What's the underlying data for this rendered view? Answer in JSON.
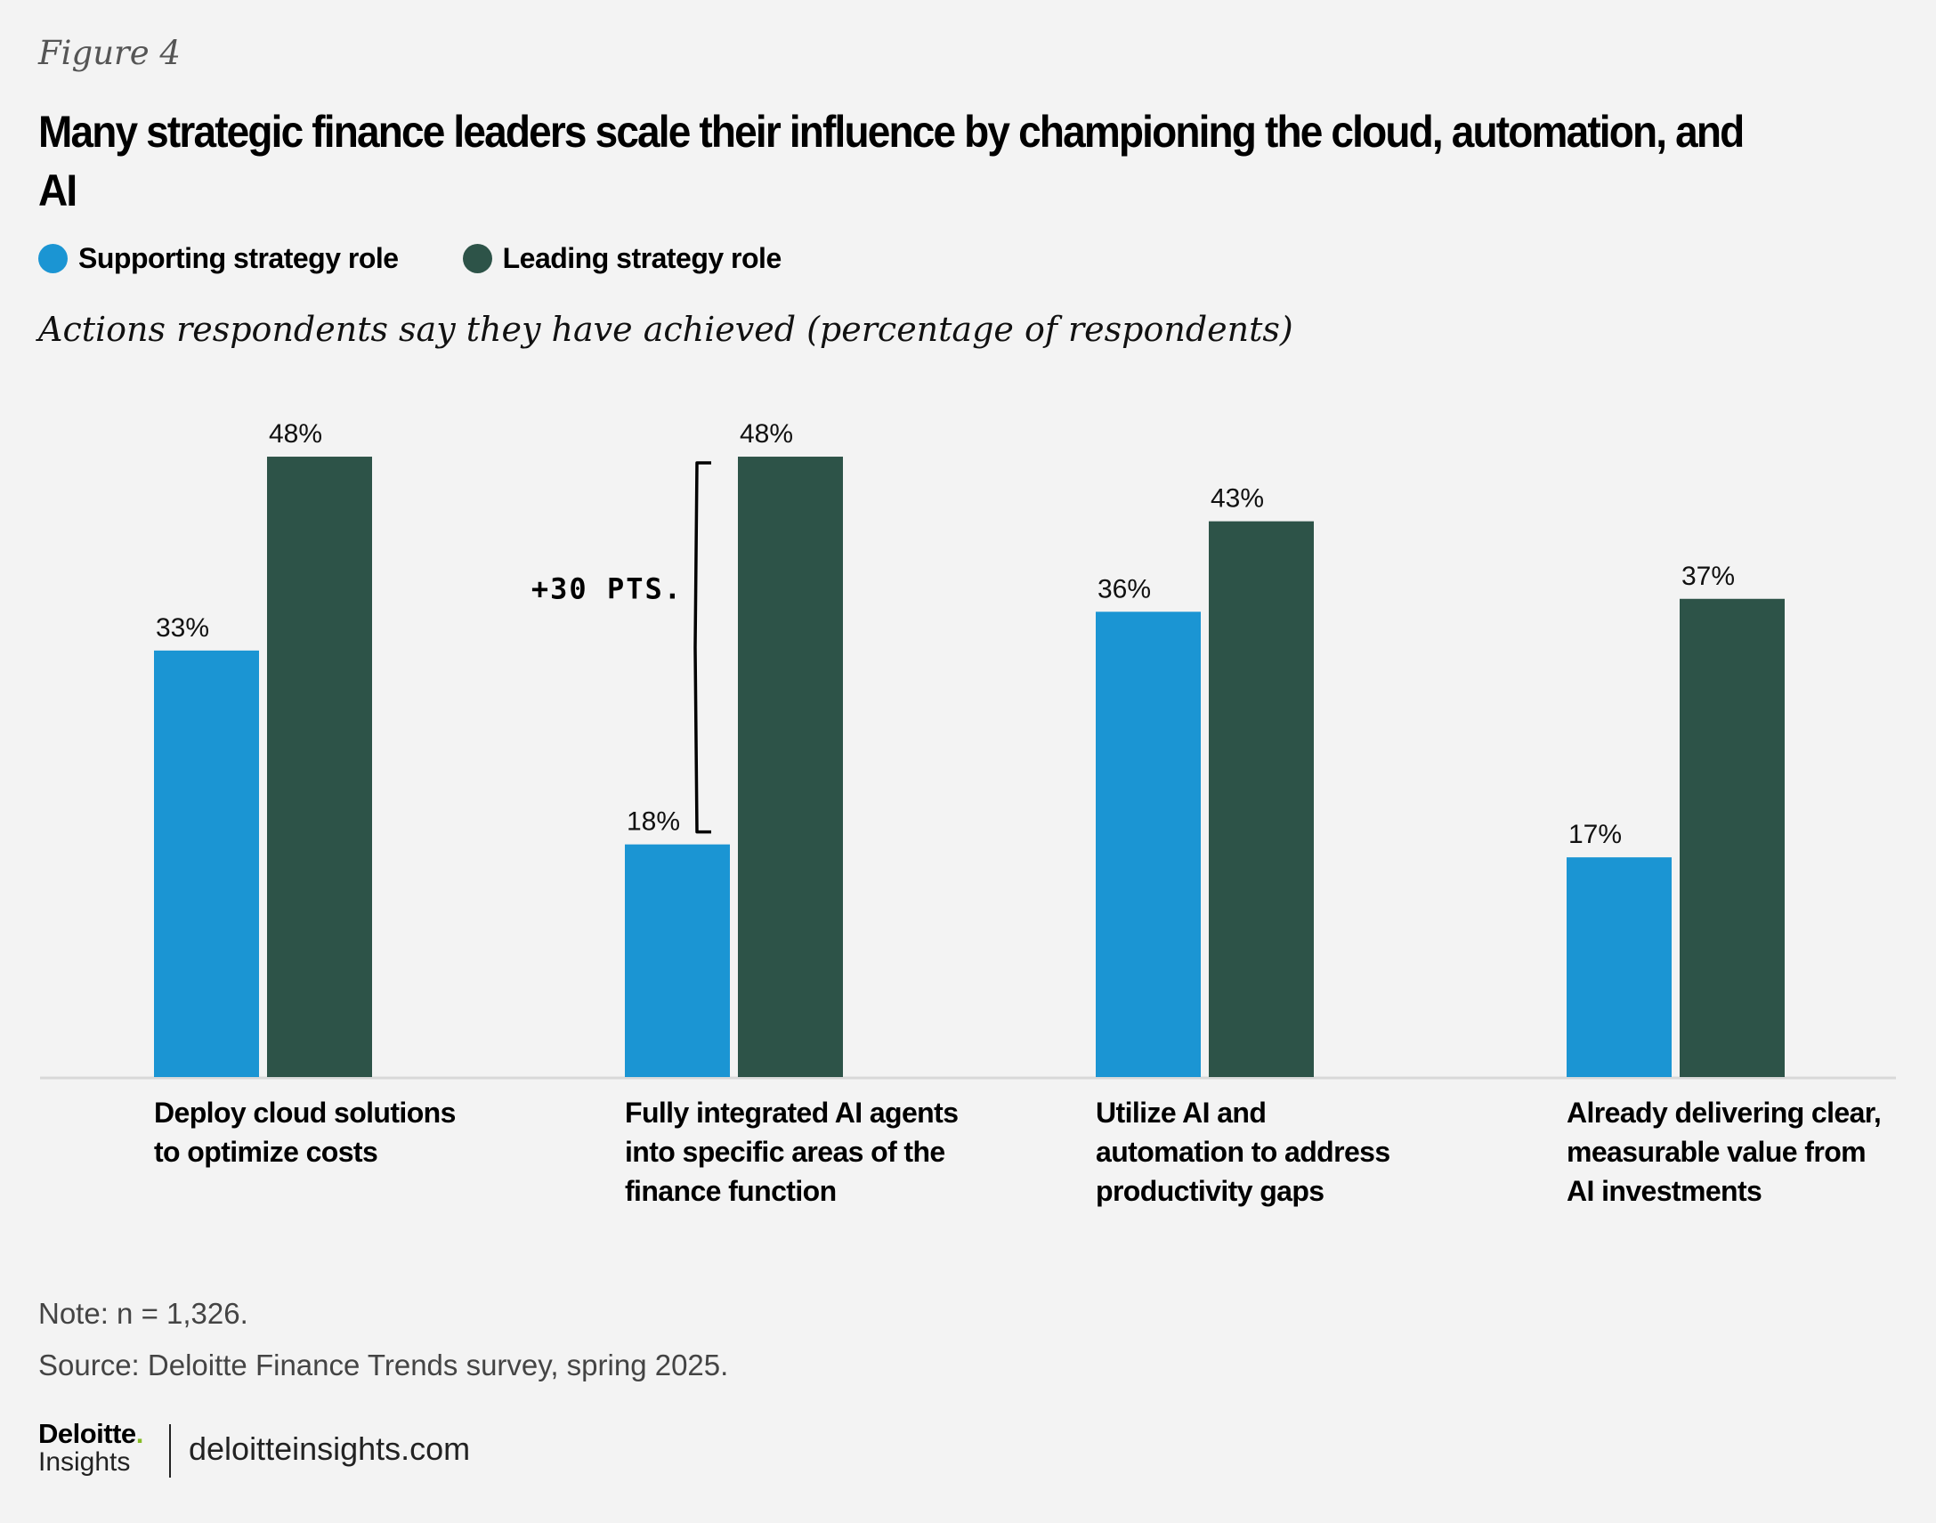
{
  "figure_label": "Figure 4",
  "title": "Many strategic finance leaders scale their influence by championing the cloud, automation, and AI",
  "legend": [
    {
      "label": "Supporting strategy role",
      "color": "#1b95d3"
    },
    {
      "label": "Leading strategy role",
      "color": "#2d5348"
    }
  ],
  "subtitle": "Actions respondents say they have achieved (percentage of respondents)",
  "chart_data": {
    "type": "bar",
    "title": "Many strategic finance leaders scale their influence by championing the cloud, automation, and AI",
    "subtitle": "Actions respondents say they have achieved (percentage of respondents)",
    "categories": [
      "Deploy cloud solutions to optimize costs",
      "Fully integrated AI agents into specific areas of the finance function",
      "Utilize AI and automation to address productivity gaps",
      "Already delivering clear, measurable value from AI investments"
    ],
    "category_lines": [
      [
        "Deploy cloud solutions",
        "to optimize costs"
      ],
      [
        "Fully integrated AI agents",
        "into specific areas of the",
        "finance function"
      ],
      [
        "Utilize AI and",
        "automation to address",
        "productivity gaps"
      ],
      [
        "Already delivering clear,",
        "measurable value from",
        "AI investments"
      ]
    ],
    "series": [
      {
        "name": "Supporting strategy role",
        "color": "#1b95d3",
        "values": [
          33,
          18,
          36,
          17
        ],
        "labels": [
          "33%",
          "18%",
          "36%",
          "17%"
        ]
      },
      {
        "name": "Leading strategy role",
        "color": "#2d5348",
        "values": [
          48,
          48,
          43,
          37
        ],
        "labels": [
          "48%",
          "48%",
          "43%",
          "37%"
        ]
      }
    ],
    "annotations": [
      {
        "text": "+30 PTS.",
        "category_index": 1,
        "from": 18,
        "to": 48
      }
    ],
    "xlabel": "",
    "ylabel": "",
    "ylim": [
      0,
      50
    ],
    "grid": false,
    "legend_position": "top-left"
  },
  "notes": {
    "note": "Note: n = 1,326.",
    "source": "Source: Deloitte Finance Trends survey, spring 2025."
  },
  "footer": {
    "brand": "Deloitte",
    "brand_dot": ".",
    "brand_sub": "Insights",
    "url": "deloitteinsights.com"
  }
}
